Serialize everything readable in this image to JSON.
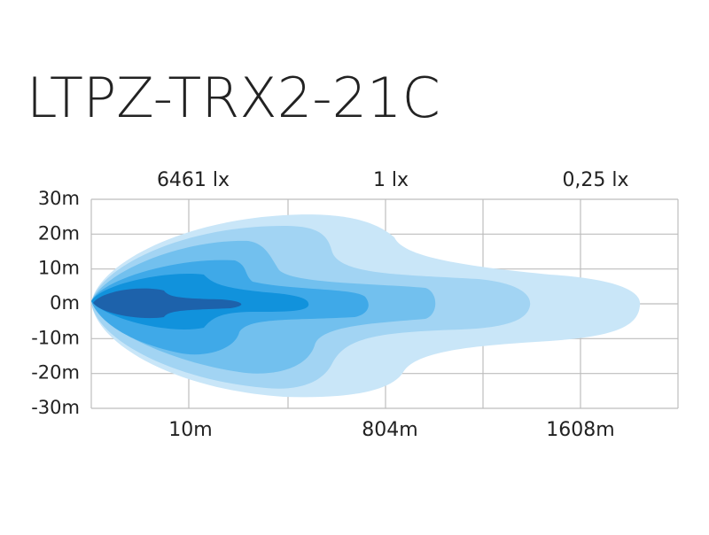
{
  "title": "LTPZ-TRX2-21C",
  "top_labels": [
    "6461 lx",
    "1 lx",
    "0,25 lx"
  ],
  "y_labels": [
    "30m",
    "20m",
    "10m",
    "0m",
    "-10m",
    "-20m",
    "-30m"
  ],
  "bottom_labels": [
    "10m",
    "804m",
    "1608m"
  ]
}
